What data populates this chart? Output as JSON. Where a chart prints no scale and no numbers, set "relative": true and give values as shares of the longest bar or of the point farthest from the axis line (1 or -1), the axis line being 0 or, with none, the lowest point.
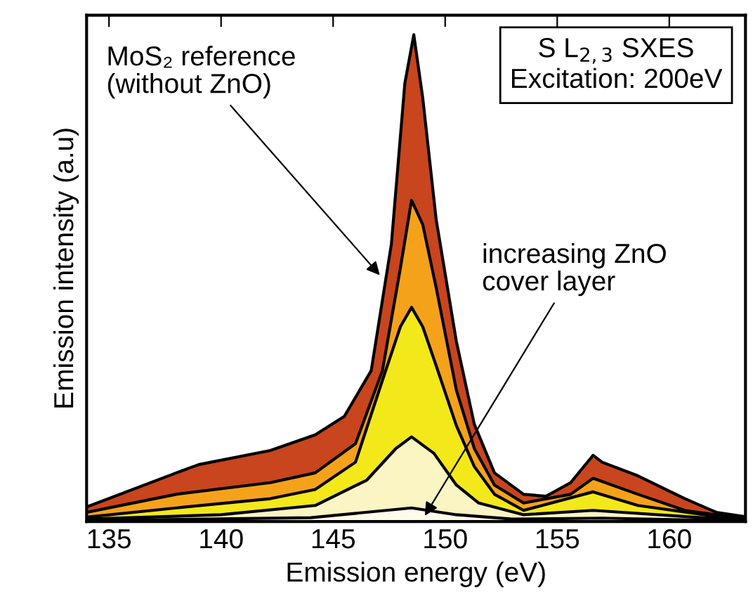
{
  "chart_data": {
    "type": "area",
    "relative": true,
    "xlabel": "Emission energy (eV)",
    "ylabel": "Emission intensity (a.u)",
    "xlim": [
      134,
      163.4
    ],
    "xticks": [
      135,
      140,
      145,
      150,
      155,
      160
    ],
    "grid": false,
    "series": [
      {
        "color": "#c8451e",
        "x": [
          134,
          138,
          139,
          142.2,
          144.2,
          145.5,
          146.7,
          147.6,
          148.2,
          148.6,
          149,
          149.6,
          150.5,
          151.3,
          152.2,
          153.5,
          154.5,
          155.6,
          156.6,
          157,
          158.6,
          160.7,
          162.1,
          163.4
        ],
        "values": [
          0.03,
          0.1,
          0.117,
          0.146,
          0.178,
          0.216,
          0.31,
          0.57,
          0.9,
          1,
          0.87,
          0.62,
          0.37,
          0.2,
          0.1,
          0.056,
          0.052,
          0.08,
          0.136,
          0.122,
          0.094,
          0.047,
          0.019,
          0.01
        ]
      },
      {
        "color": "#f5a21b",
        "x": [
          134,
          138,
          142.2,
          144.2,
          146,
          147.2,
          148,
          148.5,
          149,
          149.6,
          150.5,
          151.3,
          152.2,
          153.5,
          155.6,
          156.6,
          158.6,
          160.7,
          163.4
        ],
        "values": [
          0.019,
          0.056,
          0.08,
          0.1,
          0.16,
          0.31,
          0.52,
          0.66,
          0.61,
          0.48,
          0.27,
          0.15,
          0.075,
          0.038,
          0.056,
          0.089,
          0.056,
          0.023,
          0.005
        ]
      },
      {
        "color": "#f3e81a",
        "x": [
          134,
          138,
          142.2,
          144.2,
          146,
          147.2,
          148,
          148.5,
          149,
          149.6,
          150.5,
          151.3,
          152.2,
          153.5,
          156.6,
          158.6,
          163.4
        ],
        "values": [
          0.009,
          0.028,
          0.047,
          0.066,
          0.122,
          0.29,
          0.4,
          0.44,
          0.4,
          0.32,
          0.197,
          0.113,
          0.056,
          0.023,
          0.061,
          0.033,
          0.002
        ]
      },
      {
        "color": "#fbf5c4",
        "x": [
          134,
          140,
          144.2,
          146.5,
          147.8,
          148.5,
          149.5,
          150.5,
          151.5,
          153.5,
          156.6,
          163.4
        ],
        "values": [
          0.005,
          0.014,
          0.033,
          0.085,
          0.15,
          0.174,
          0.14,
          0.075,
          0.038,
          0.014,
          0.023,
          0.002
        ]
      },
      {
        "color": "#fefbea",
        "x": [
          134,
          144,
          148.5,
          150.5,
          153,
          157,
          163.4
        ],
        "values": [
          0.002,
          0.008,
          0.028,
          0.014,
          0.005,
          0.007,
          0.001
        ]
      }
    ],
    "annotations": [
      {
        "text": "MoS₂ reference\n(without ZnO)",
        "x": 147.2,
        "y": 0.5
      },
      {
        "text": "increasing ZnO\ncover layer",
        "x": 149.0,
        "y": 0.005
      },
      "S L$_{2,3}$ SXES\nExcitation: 200eV"
    ]
  }
}
